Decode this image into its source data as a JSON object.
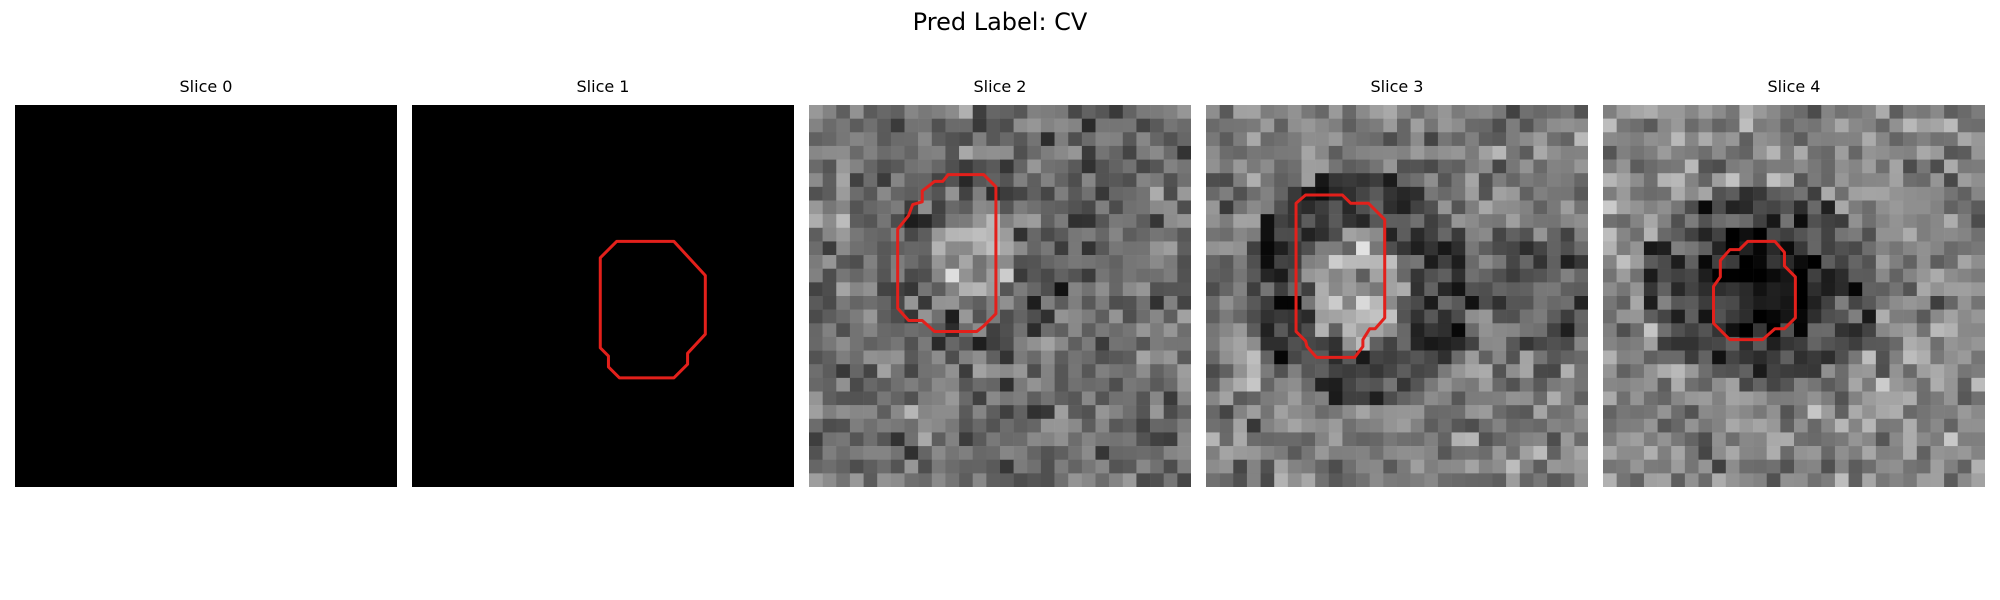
{
  "figure": {
    "title": "Pred Label: CV"
  },
  "panels": [
    {
      "title": "Slice 0",
      "image": "blank",
      "contour": []
    },
    {
      "title": "Slice 1",
      "image": "blank",
      "contour": [
        [
          13.8,
          11.2
        ],
        [
          15.0,
          10.0
        ],
        [
          19.2,
          10.0
        ],
        [
          21.5,
          12.5
        ],
        [
          21.5,
          16.8
        ],
        [
          20.2,
          18.2
        ],
        [
          20.2,
          19.0
        ],
        [
          19.2,
          20.0
        ],
        [
          15.2,
          20.0
        ],
        [
          14.4,
          19.2
        ],
        [
          14.4,
          18.4
        ],
        [
          13.8,
          17.8
        ]
      ]
    },
    {
      "title": "Slice 2",
      "image": "noise",
      "contour": [
        [
          8.3,
          6.3
        ],
        [
          9.2,
          5.6
        ],
        [
          9.8,
          5.6
        ],
        [
          10.2,
          5.1
        ],
        [
          12.8,
          5.1
        ],
        [
          13.7,
          6.0
        ],
        [
          13.7,
          15.3
        ],
        [
          12.8,
          16.2
        ],
        [
          12.3,
          16.6
        ],
        [
          9.2,
          16.6
        ],
        [
          8.3,
          15.8
        ],
        [
          7.3,
          15.8
        ],
        [
          6.5,
          14.9
        ],
        [
          6.5,
          9.1
        ],
        [
          7.3,
          8.1
        ],
        [
          7.6,
          7.3
        ],
        [
          8.3,
          7.1
        ]
      ]
    },
    {
      "title": "Slice 3",
      "image": "noise-ring",
      "contour": [
        [
          6.6,
          7.2
        ],
        [
          7.3,
          6.6
        ],
        [
          10.0,
          6.6
        ],
        [
          10.6,
          7.2
        ],
        [
          11.9,
          7.2
        ],
        [
          13.1,
          8.4
        ],
        [
          13.1,
          15.6
        ],
        [
          12.4,
          16.4
        ],
        [
          12.0,
          16.4
        ],
        [
          11.5,
          17.2
        ],
        [
          11.5,
          17.7
        ],
        [
          10.9,
          18.5
        ],
        [
          8.1,
          18.5
        ],
        [
          7.4,
          17.7
        ],
        [
          7.3,
          17.3
        ],
        [
          6.6,
          16.6
        ]
      ]
    },
    {
      "title": "Slice 4",
      "image": "noise-dark-blob",
      "contour": [
        [
          8.6,
          11.4
        ],
        [
          9.3,
          10.6
        ],
        [
          10.0,
          10.6
        ],
        [
          10.6,
          10.0
        ],
        [
          12.6,
          10.0
        ],
        [
          13.3,
          10.8
        ],
        [
          13.3,
          11.8
        ],
        [
          14.1,
          12.6
        ],
        [
          14.1,
          15.6
        ],
        [
          13.3,
          16.4
        ],
        [
          12.6,
          16.4
        ],
        [
          11.7,
          17.2
        ],
        [
          9.3,
          17.2
        ],
        [
          8.1,
          16.0
        ],
        [
          8.1,
          13.3
        ],
        [
          8.6,
          12.6
        ]
      ]
    }
  ],
  "colors": {
    "contour": "#e3201b",
    "blank": "#000000"
  }
}
